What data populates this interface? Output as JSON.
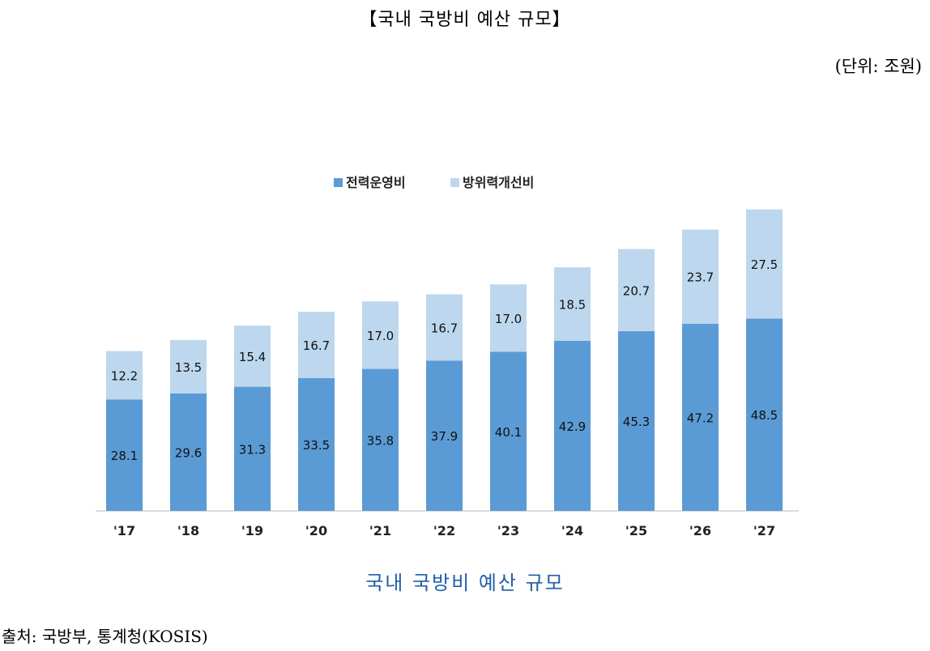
{
  "page": {
    "title": "【국내 국방비 예산 규모】",
    "unit": "(단위: 조원)",
    "caption": "국내 국방비 예산 규모",
    "source": "출처: 국방부, 통계청(KOSIS)"
  },
  "chart_data": {
    "type": "bar",
    "stacked": true,
    "categories": [
      "'17",
      "'18",
      "'19",
      "'20",
      "'21",
      "'22",
      "'23",
      "'24",
      "'25",
      "'26",
      "'27"
    ],
    "series": [
      {
        "name": "전력운영비",
        "color": "#5b9bd5",
        "values": [
          28.1,
          29.6,
          31.3,
          33.5,
          35.8,
          37.9,
          40.1,
          42.9,
          45.3,
          47.2,
          48.5
        ]
      },
      {
        "name": "방위력개선비",
        "color": "#bdd7ee",
        "values": [
          12.2,
          13.5,
          15.4,
          16.7,
          17.0,
          16.7,
          17.0,
          18.5,
          20.7,
          23.7,
          27.5
        ]
      }
    ],
    "legend_position": "top-center",
    "grid": false
  }
}
